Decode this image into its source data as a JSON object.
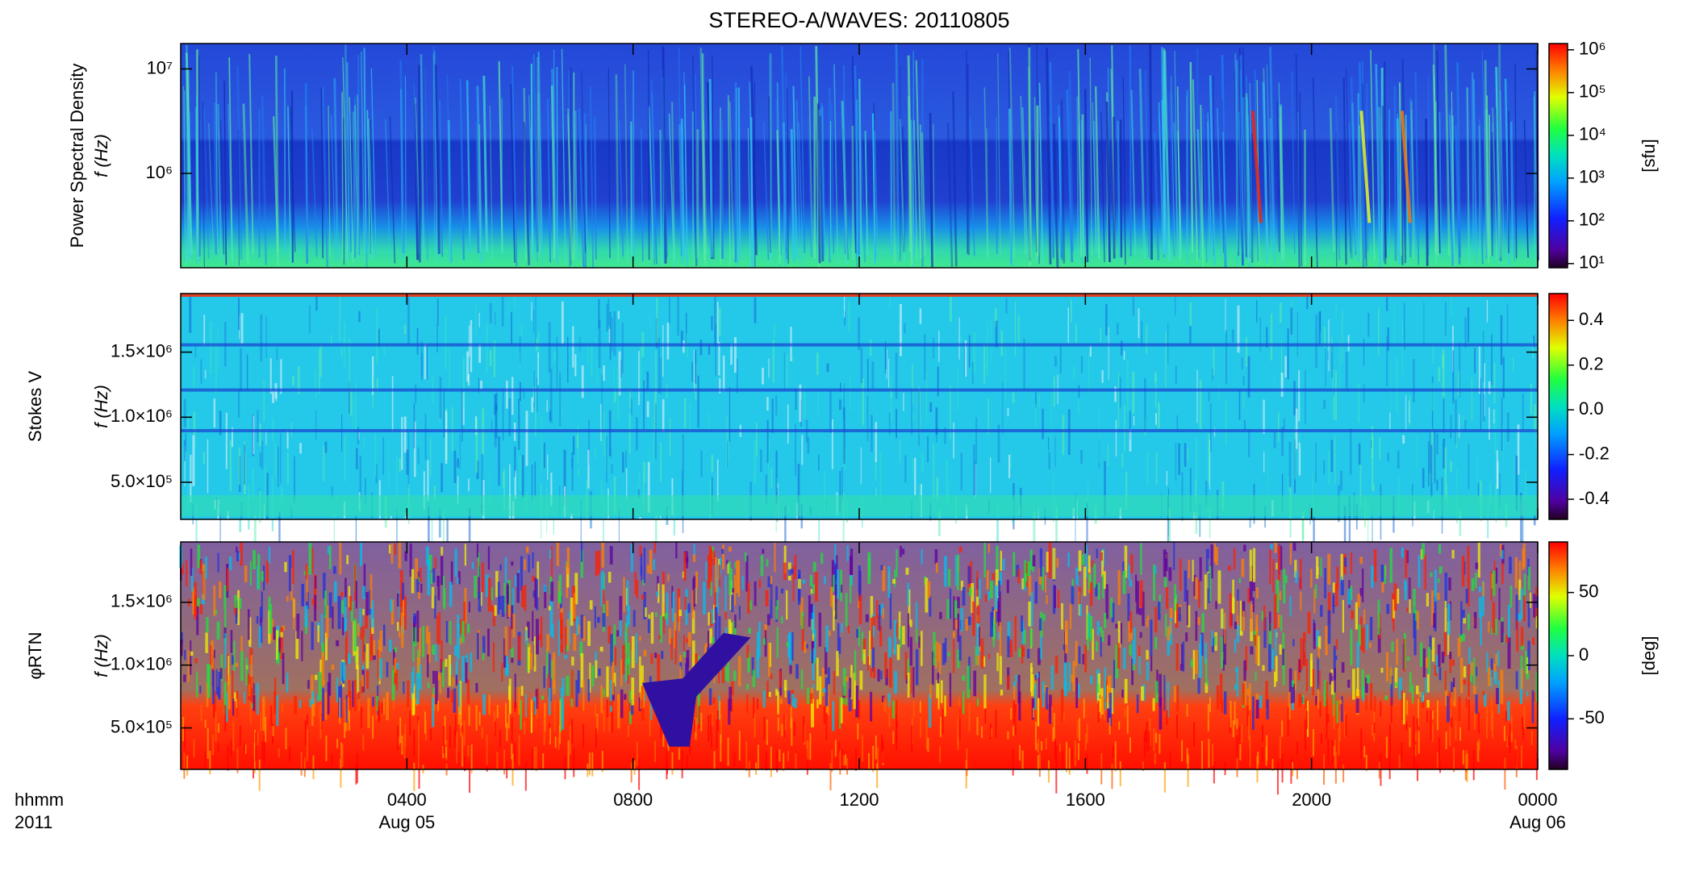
{
  "chart_data": [
    {
      "type": "heatmap",
      "title": "STEREO-A/WAVES: 20110805",
      "ylabel": [
        "Power Spectral Density",
        "f (Hz)"
      ],
      "yscale": "log",
      "ylim": [
        125000,
        17500000
      ],
      "yticks": [
        {
          "value": 1000000,
          "label": "10⁶"
        },
        {
          "value": 10000000,
          "label": "10⁷"
        }
      ],
      "colorbar": {
        "label": "[sfu]",
        "scale": "log",
        "lim": [
          8,
          1400000
        ],
        "ticks": [
          {
            "value": 10,
            "label": "10¹"
          },
          {
            "value": 100,
            "label": "10²"
          },
          {
            "value": 1000,
            "label": "10³"
          },
          {
            "value": 10000,
            "label": "10⁴"
          },
          {
            "value": 100000,
            "label": "10⁵"
          },
          {
            "value": 1000000,
            "label": "10⁶"
          }
        ]
      }
    },
    {
      "type": "heatmap",
      "ylabel": [
        "Stokes V",
        "f (Hz)"
      ],
      "yscale": "linear",
      "ylim": [
        215000,
        1950000
      ],
      "yticks": [
        {
          "value": 500000,
          "label": "5.0×10⁵"
        },
        {
          "value": 1000000,
          "label": "1.0×10⁶"
        },
        {
          "value": 1500000,
          "label": "1.5×10⁶"
        }
      ],
      "colorbar": {
        "scale": "linear",
        "lim": [
          -0.49,
          0.52
        ],
        "ticks": [
          {
            "value": -0.4,
            "label": "-0.4"
          },
          -0.2,
          {
            "value": 0,
            "label": "0.0"
          },
          0.2,
          0.4
        ]
      }
    },
    {
      "type": "heatmap",
      "ylabel": [
        "φRTN",
        "f (Hz)"
      ],
      "yscale": "linear",
      "ylim": [
        170000,
        1980000
      ],
      "yticks": [
        {
          "value": 500000,
          "label": "5.0×10⁵"
        },
        {
          "value": 1000000,
          "label": "1.0×10⁶"
        },
        {
          "value": 1500000,
          "label": "1.5×10⁶"
        }
      ],
      "colorbar": {
        "label": "[deg]",
        "scale": "linear",
        "lim": [
          -90,
          90
        ],
        "ticks": [
          -50,
          0,
          50
        ]
      },
      "xlabel": [
        "hhmm",
        "2011"
      ],
      "xlim": [
        0,
        24
      ],
      "xticks": [
        {
          "value": 4,
          "label": "0400"
        },
        {
          "value": 8,
          "label": "0800"
        },
        {
          "value": 12,
          "label": "1200"
        },
        {
          "value": 16,
          "label": "1600"
        },
        {
          "value": 20,
          "label": "2000"
        },
        {
          "value": 24,
          "label": "0000"
        }
      ],
      "xtick_dates": [
        "Aug 05",
        null,
        null,
        null,
        null,
        "Aug 06"
      ]
    }
  ]
}
